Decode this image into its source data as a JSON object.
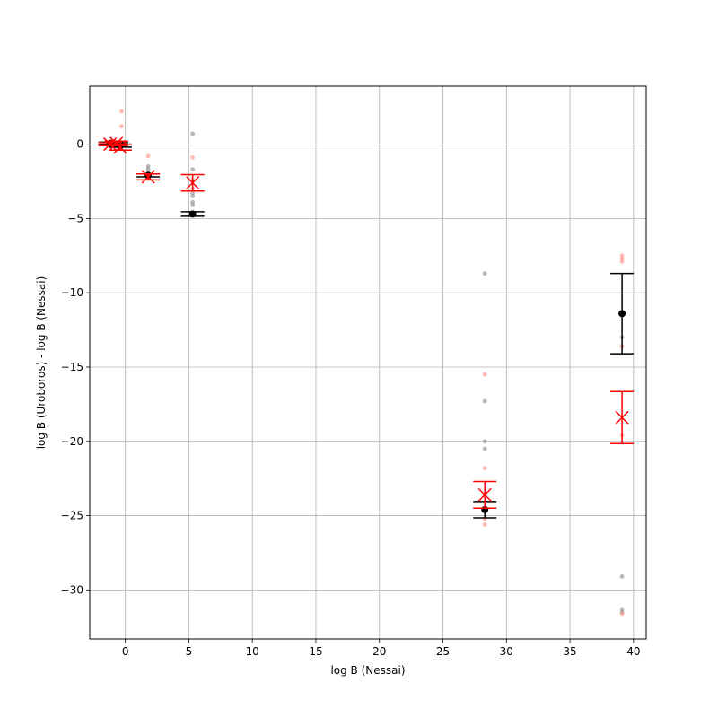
{
  "chart_data": {
    "type": "scatter",
    "title": "",
    "xlabel": "log B (Nessai)",
    "ylabel": "log B (Uroboros) - log B (Nessai)",
    "xlim": [
      -2.8,
      41.0
    ],
    "ylim": [
      -33.3,
      3.9
    ],
    "xticks": [
      0,
      5,
      10,
      15,
      20,
      25,
      30,
      35,
      40
    ],
    "yticks": [
      0,
      -5,
      -10,
      -15,
      -20,
      -25,
      -30
    ],
    "grid": true,
    "colors": {
      "black_series": "#000000",
      "red_series": "#ff0000",
      "black_samples": "#808080",
      "red_samples": "#ff8c80",
      "grid": "#b0b0b0"
    },
    "series": [
      {
        "marker": "circle",
        "color": "#000000",
        "points": [
          {
            "x": -1.2,
            "y": 0.05,
            "yerr": 0.08
          },
          {
            "x": -0.7,
            "y": 0.0,
            "yerr": 0.1
          },
          {
            "x": -0.4,
            "y": -0.1,
            "yerr": 0.1
          },
          {
            "x": 1.8,
            "y": -2.1,
            "yerr": 0.1
          },
          {
            "x": 5.3,
            "y": -4.7,
            "yerr": 0.15
          },
          {
            "x": 28.3,
            "y": -24.6,
            "yerr": 0.55
          },
          {
            "x": 39.1,
            "y": -11.4,
            "yerr": 2.7
          }
        ]
      },
      {
        "marker": "x",
        "color": "#ff0000",
        "points": [
          {
            "x": -1.2,
            "y": 0.0,
            "yerr": 0.1
          },
          {
            "x": -0.7,
            "y": 0.05,
            "yerr": 0.15
          },
          {
            "x": -0.4,
            "y": -0.2,
            "yerr": 0.2
          },
          {
            "x": 1.8,
            "y": -2.2,
            "yerr": 0.2
          },
          {
            "x": 5.3,
            "y": -2.6,
            "yerr": 0.55
          },
          {
            "x": 28.3,
            "y": -23.6,
            "yerr": 0.9
          },
          {
            "x": 39.1,
            "y": -18.4,
            "yerr": 1.75
          }
        ]
      }
    ],
    "samples_black": [
      [
        -1.2,
        0.1
      ],
      [
        -1.0,
        -0.1
      ],
      [
        -0.7,
        0.15
      ],
      [
        -0.4,
        -0.05
      ],
      [
        1.8,
        -1.5
      ],
      [
        1.8,
        -1.7
      ],
      [
        1.8,
        -1.9
      ],
      [
        5.3,
        0.7
      ],
      [
        5.3,
        -1.7
      ],
      [
        5.3,
        -3.3
      ],
      [
        5.3,
        -3.5
      ],
      [
        5.3,
        -3.9
      ],
      [
        5.3,
        -4.1
      ],
      [
        28.3,
        -8.7
      ],
      [
        28.3,
        -17.3
      ],
      [
        28.3,
        -20.0
      ],
      [
        28.3,
        -20.5
      ],
      [
        39.1,
        -13.0
      ],
      [
        39.1,
        -29.1
      ],
      [
        39.1,
        -31.3
      ],
      [
        39.1,
        -31.5
      ]
    ],
    "samples_red": [
      [
        -0.3,
        2.2
      ],
      [
        -0.3,
        1.2
      ],
      [
        -1.1,
        0.2
      ],
      [
        -0.6,
        -0.3
      ],
      [
        1.8,
        -0.8
      ],
      [
        1.8,
        -2.0
      ],
      [
        5.3,
        -0.9
      ],
      [
        5.3,
        -2.4
      ],
      [
        5.3,
        -3.0
      ],
      [
        28.3,
        -15.5
      ],
      [
        28.3,
        -21.8
      ],
      [
        28.3,
        -25.2
      ],
      [
        28.3,
        -25.6
      ],
      [
        39.1,
        -7.5
      ],
      [
        39.1,
        -7.7
      ],
      [
        39.1,
        -7.9
      ],
      [
        39.1,
        -13.6
      ],
      [
        39.1,
        -19.6
      ],
      [
        39.1,
        -31.6
      ]
    ]
  }
}
